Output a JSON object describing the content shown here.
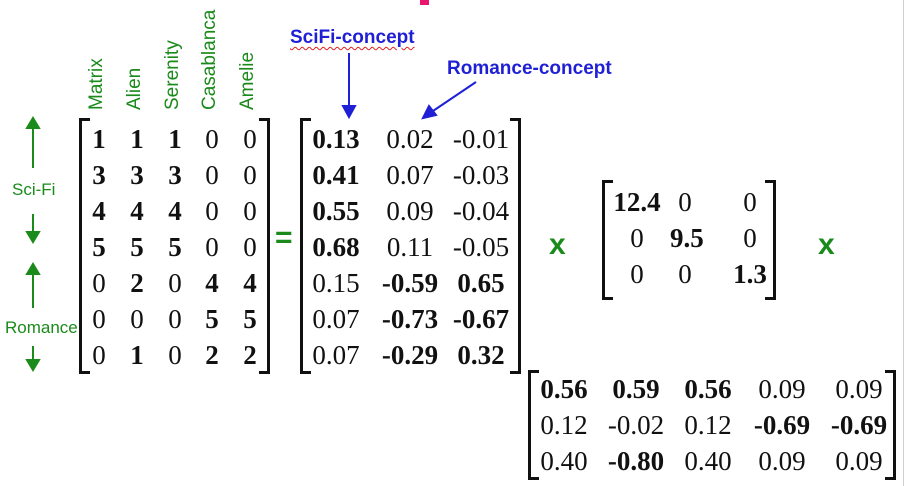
{
  "movies": [
    "Matrix",
    "Alien",
    "Serenity",
    "Casablanca",
    "Amelie"
  ],
  "side_labels": {
    "scifi": "Sci-Fi",
    "romance": "Romance"
  },
  "concepts": {
    "scifi": "SciFi-concept",
    "romance": "Romance-concept"
  },
  "operators": {
    "equals": "=",
    "times": "x"
  },
  "matrix_A": [
    [
      "1",
      "1",
      "1",
      "0",
      "0"
    ],
    [
      "3",
      "3",
      "3",
      "0",
      "0"
    ],
    [
      "4",
      "4",
      "4",
      "0",
      "0"
    ],
    [
      "5",
      "5",
      "5",
      "0",
      "0"
    ],
    [
      "0",
      "2",
      "0",
      "4",
      "4"
    ],
    [
      "0",
      "0",
      "0",
      "5",
      "5"
    ],
    [
      "0",
      "1",
      "0",
      "2",
      "2"
    ]
  ],
  "matrix_A_bold": [
    [
      1,
      1,
      1,
      0,
      0
    ],
    [
      1,
      1,
      1,
      0,
      0
    ],
    [
      1,
      1,
      1,
      0,
      0
    ],
    [
      1,
      1,
      1,
      0,
      0
    ],
    [
      0,
      1,
      0,
      1,
      1
    ],
    [
      0,
      0,
      0,
      1,
      1
    ],
    [
      0,
      1,
      0,
      1,
      1
    ]
  ],
  "matrix_U": [
    [
      "0.13",
      "0.02",
      "-0.01"
    ],
    [
      "0.41",
      "0.07",
      "-0.03"
    ],
    [
      "0.55",
      "0.09",
      "-0.04"
    ],
    [
      "0.68",
      "0.11",
      "-0.05"
    ],
    [
      "0.15",
      "-0.59",
      "0.65"
    ],
    [
      "0.07",
      "-0.73",
      "-0.67"
    ],
    [
      "0.07",
      "-0.29",
      "0.32"
    ]
  ],
  "matrix_U_bold": [
    [
      1,
      0,
      0
    ],
    [
      1,
      0,
      0
    ],
    [
      1,
      0,
      0
    ],
    [
      1,
      0,
      0
    ],
    [
      0,
      1,
      1
    ],
    [
      0,
      1,
      1
    ],
    [
      0,
      1,
      1
    ]
  ],
  "matrix_S": [
    [
      "12.4",
      "0",
      "0"
    ],
    [
      "0",
      "9.5",
      "0"
    ],
    [
      "0",
      "0",
      "1.3"
    ]
  ],
  "matrix_S_bold": [
    [
      1,
      0,
      0
    ],
    [
      0,
      1,
      0
    ],
    [
      0,
      0,
      1
    ]
  ],
  "matrix_V": [
    [
      "0.56",
      "0.59",
      "0.56",
      "0.09",
      "0.09"
    ],
    [
      "0.12",
      "-0.02",
      "0.12",
      "-0.69",
      "-0.69"
    ],
    [
      "0.40",
      "-0.80",
      "0.40",
      "0.09",
      "0.09"
    ]
  ],
  "matrix_V_bold": [
    [
      1,
      1,
      1,
      0,
      0
    ],
    [
      0,
      0,
      0,
      1,
      1
    ],
    [
      0,
      1,
      0,
      0,
      0
    ]
  ]
}
